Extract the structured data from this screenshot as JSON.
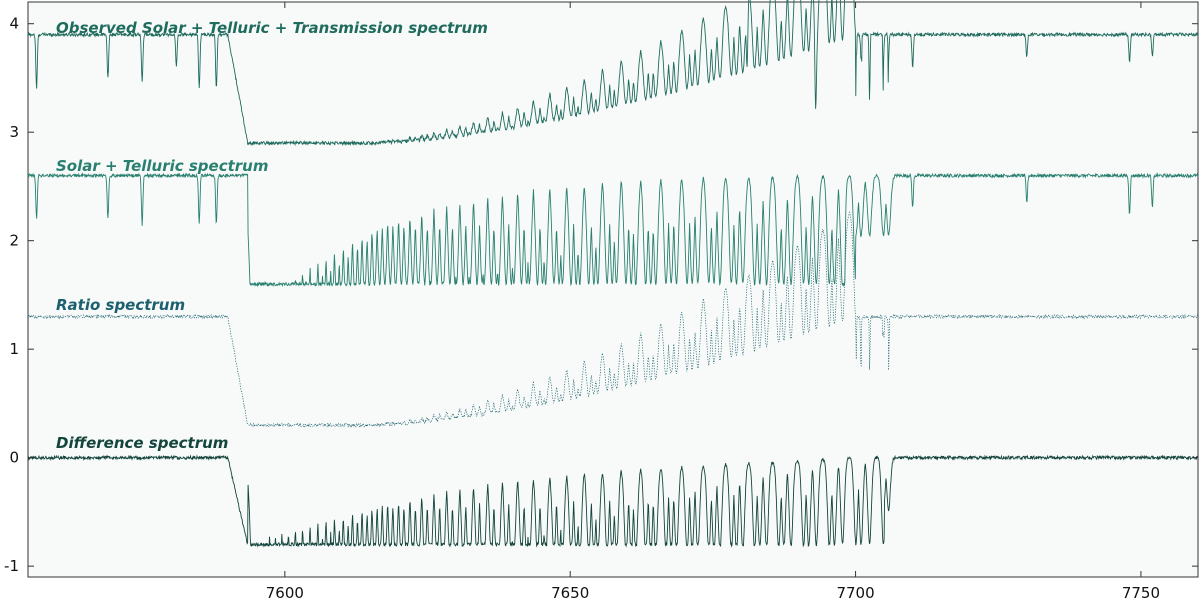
{
  "chart_data": {
    "type": "line",
    "title": "",
    "xlabel": "",
    "ylabel": "",
    "xlim": [
      7555,
      7760
    ],
    "ylim": [
      -1.1,
      4.2
    ],
    "x_ticks": [
      7600,
      7650,
      7700,
      7750
    ],
    "x_tick_labels": [
      "7600",
      "7650",
      "7700",
      "7750"
    ],
    "y_ticks": [
      -1,
      0,
      1,
      2,
      3,
      4
    ],
    "y_tick_labels": [
      "-1",
      "0",
      "1",
      "2",
      "3",
      "4"
    ],
    "grid": false,
    "series": [
      {
        "name": "Observed Solar + Telluric + Transmission spectrum",
        "continuum": 3.9,
        "band_floor": 2.9,
        "band_start": 7593,
        "solar_lines": [
          [
            7556.5,
            0.5
          ],
          [
            7569,
            0.4
          ],
          [
            7575,
            0.45
          ],
          [
            7581,
            0.3
          ],
          [
            7585,
            0.5
          ],
          [
            7588,
            0.5
          ],
          [
            7681,
            0.6
          ],
          [
            7693,
            0.6
          ],
          [
            7710,
            0.3
          ],
          [
            7730,
            0.2
          ],
          [
            7748,
            0.25
          ],
          [
            7752,
            0.2
          ]
        ],
        "color": "#1f6b5e"
      },
      {
        "name": "Solar + Telluric spectrum",
        "continuum": 2.6,
        "band_floor": 1.6,
        "band_start": 7593,
        "solar_lines": [
          [
            7556.5,
            0.4
          ],
          [
            7569,
            0.4
          ],
          [
            7575,
            0.45
          ],
          [
            7585,
            0.45
          ],
          [
            7588,
            0.45
          ],
          [
            7698,
            0.9
          ],
          [
            7710,
            0.3
          ],
          [
            7730,
            0.25
          ],
          [
            7748,
            0.35
          ],
          [
            7752,
            0.3
          ]
        ],
        "color": "#2a8070"
      },
      {
        "name": "Ratio spectrum",
        "continuum": 1.3,
        "band_floor": 0.3,
        "band_start": 7593,
        "solar_lines": [],
        "color": "#1c6070"
      },
      {
        "name": "Difference spectrum",
        "continuum": 0.0,
        "band_floor": -0.8,
        "band_start": 7593,
        "solar_lines": [],
        "color": "#14453d"
      }
    ]
  }
}
